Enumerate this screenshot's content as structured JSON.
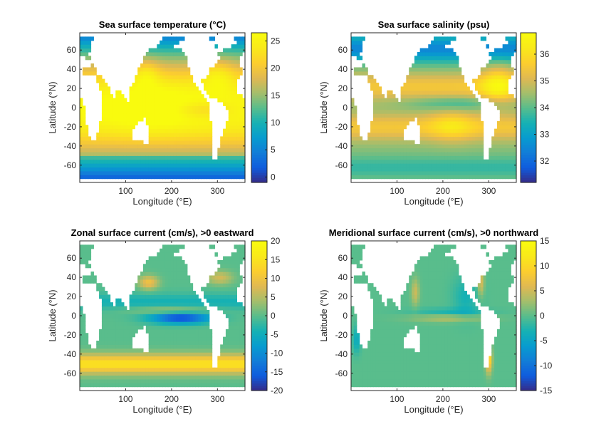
{
  "chart_data": [
    {
      "type": "heatmap",
      "title": "Sea surface temperature (°C)",
      "xlabel": "Longitude (°E)",
      "ylabel": "Latitude (°N)",
      "xlim": [
        0,
        360
      ],
      "ylim": [
        -78,
        78
      ],
      "xticks": [
        "100",
        "200",
        "300"
      ],
      "yticks": [
        "60",
        "40",
        "20",
        "0",
        "-20",
        "-40",
        "-60"
      ],
      "colorbar": {
        "range": [
          -1,
          26.5
        ],
        "ticks": [
          "25",
          "20",
          "15",
          "10",
          "5",
          "0"
        ]
      },
      "field": "sst"
    },
    {
      "type": "heatmap",
      "title": "Sea surface salinity (psu)",
      "xlabel": "Longitude (°E)",
      "ylabel": "Latitude (°N)",
      "xlim": [
        0,
        360
      ],
      "ylim": [
        -78,
        78
      ],
      "xticks": [
        "100",
        "200",
        "300"
      ],
      "yticks": [
        "60",
        "40",
        "20",
        "0",
        "-20",
        "-40",
        "-60"
      ],
      "colorbar": {
        "range": [
          31.2,
          36.8
        ],
        "ticks": [
          "36",
          "35",
          "34",
          "33",
          "32"
        ]
      },
      "field": "sss"
    },
    {
      "type": "heatmap",
      "title": "Zonal surface current (cm/s), >0 eastward",
      "xlabel": "Longitude (°E)",
      "ylabel": "Latitude (°N)",
      "xlim": [
        0,
        360
      ],
      "ylim": [
        -78,
        78
      ],
      "xticks": [
        "100",
        "200",
        "300"
      ],
      "yticks": [
        "60",
        "40",
        "20",
        "0",
        "-20",
        "-40",
        "-60"
      ],
      "colorbar": {
        "range": [
          -20,
          20
        ],
        "ticks": [
          "20",
          "15",
          "10",
          "5",
          "0",
          "-5",
          "-10",
          "-15",
          "-20"
        ]
      },
      "field": "u"
    },
    {
      "type": "heatmap",
      "title": "Meridional surface current (cm/s), >0 northward",
      "xlabel": "Longitude (°E)",
      "ylabel": "Latitude (°N)",
      "xlim": [
        0,
        360
      ],
      "ylim": [
        -78,
        78
      ],
      "xticks": [
        "100",
        "200",
        "300"
      ],
      "yticks": [
        "60",
        "40",
        "20",
        "0",
        "-20",
        "-40",
        "-60"
      ],
      "colorbar": {
        "range": [
          -15,
          15
        ],
        "ticks": [
          "15",
          "10",
          "5",
          "0",
          "-5",
          "-10",
          "-15"
        ]
      },
      "field": "v"
    }
  ],
  "colors": {
    "land": "#ffffff",
    "axis": "#262626"
  }
}
